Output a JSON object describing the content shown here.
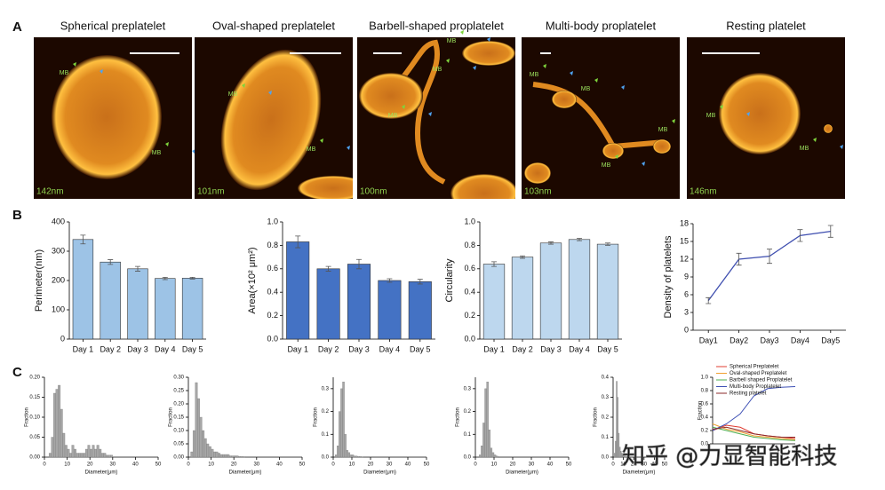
{
  "figure": {
    "panel_labels": [
      "A",
      "B",
      "C"
    ],
    "watermark": "知乎 @力显智能科技"
  },
  "panel_a": [
    {
      "title": "Spherical preplatelet",
      "scale": "142nm",
      "markers": [
        "MB",
        "MB"
      ]
    },
    {
      "title": "Oval-shaped preplatelet",
      "scale": "101nm",
      "markers": [
        "MB",
        "MB"
      ]
    },
    {
      "title": "Barbell-shaped proplatelet",
      "scale": "100nm",
      "markers": [
        "MB",
        "MB",
        "MB"
      ]
    },
    {
      "title": "Multi-body proplatelet",
      "scale": "103nm",
      "markers": [
        "MB",
        "MB",
        "MB",
        "MB"
      ]
    },
    {
      "title": "Resting platelet",
      "scale": "146nm",
      "markers": [
        "MB",
        "MB"
      ]
    }
  ],
  "chart_data": [
    {
      "type": "bar",
      "ylabel": "Perimeter(nm)",
      "categories": [
        "Day 1",
        "Day 2",
        "Day 3",
        "Day 4",
        "Day 5"
      ],
      "values": [
        340,
        263,
        240,
        207,
        208
      ],
      "errors": [
        15,
        8,
        8,
        4,
        3
      ],
      "color": "#9dc3e6",
      "ylim": [
        0,
        400
      ],
      "yticks": [
        0,
        100,
        200,
        300,
        400
      ]
    },
    {
      "type": "bar",
      "ylabel": "Area(×10² μm²)",
      "categories": [
        "Day 1",
        "Day 2",
        "Day 3",
        "Day 4",
        "Day 5"
      ],
      "values": [
        0.83,
        0.6,
        0.64,
        0.5,
        0.49
      ],
      "errors": [
        0.05,
        0.02,
        0.04,
        0.015,
        0.02
      ],
      "color": "#4472c4",
      "ylim": [
        0,
        1
      ],
      "yticks": [
        {
          "value": 0,
          "label": "0.0"
        },
        0.2,
        0.4,
        0.6,
        0.8,
        {
          "value": 1,
          "label": "1.0"
        }
      ]
    },
    {
      "type": "bar",
      "ylabel": "Circularity",
      "categories": [
        "Day 1",
        "Day 2",
        "Day 3",
        "Day 4",
        "Day 5"
      ],
      "values": [
        0.64,
        0.7,
        0.82,
        0.85,
        0.81
      ],
      "errors": [
        0.02,
        0.01,
        0.01,
        0.01,
        0.01
      ],
      "color": "#bdd7ee",
      "ylim": [
        0,
        1
      ],
      "yticks": [
        {
          "value": 0,
          "label": "0.0"
        },
        0.2,
        0.4,
        0.6,
        0.8,
        {
          "value": 1,
          "label": "1.0"
        }
      ]
    },
    {
      "type": "line",
      "ylabel": "Density of platelets",
      "categories": [
        "Day1",
        "Day2",
        "Day3",
        "Day4",
        "Day5"
      ],
      "values": [
        5,
        12,
        12.5,
        16,
        16.7
      ],
      "errors": [
        0.5,
        1,
        1.2,
        1,
        1
      ],
      "color": "#3f4fb0",
      "ylim": [
        0,
        18
      ],
      "yticks": [
        0,
        3,
        6,
        9,
        12,
        15,
        18
      ]
    },
    {
      "type": "histogram",
      "xlabel": "Diameter(μm)",
      "ylabel": "Fraction",
      "color": "#a6a6a6",
      "bins": [
        2,
        3,
        4,
        5,
        6,
        7,
        8,
        9,
        10,
        11,
        12,
        13,
        14,
        15,
        16,
        17,
        18,
        19,
        20,
        21,
        22,
        23,
        24,
        25,
        26,
        27,
        28,
        29,
        30
      ],
      "values": [
        0.01,
        0.05,
        0.16,
        0.17,
        0.18,
        0.12,
        0.06,
        0.03,
        0.02,
        0.01,
        0.03,
        0.02,
        0.01,
        0.01,
        0.01,
        0.01,
        0.02,
        0.03,
        0.02,
        0.03,
        0.02,
        0.03,
        0.02,
        0.01,
        0.01,
        0.005,
        0.005,
        0.005
      ],
      "xlim": [
        0,
        50
      ],
      "xticks": [
        0,
        10,
        20,
        30,
        40,
        50
      ],
      "ylim": [
        0,
        0.2
      ],
      "yticks": [
        {
          "value": 0,
          "label": "0.00"
        },
        0.05,
        {
          "value": 0.1,
          "label": "0.10"
        },
        0.15,
        {
          "value": 0.2,
          "label": "0.20"
        }
      ]
    },
    {
      "type": "histogram",
      "xlabel": "Diameter(μm)",
      "ylabel": "Fraction",
      "color": "#a6a6a6",
      "bins": [
        1,
        2,
        3,
        4,
        5,
        6,
        7,
        8,
        9,
        10,
        11,
        12,
        13,
        14,
        15,
        16,
        17,
        18,
        19,
        20,
        21,
        22,
        23,
        24,
        25
      ],
      "values": [
        0.02,
        0.1,
        0.28,
        0.22,
        0.15,
        0.1,
        0.07,
        0.05,
        0.04,
        0.03,
        0.02,
        0.02,
        0.015,
        0.01,
        0.01,
        0.01,
        0.01,
        0.005,
        0.005,
        0.005,
        0.005,
        0.003,
        0.003,
        0.002
      ],
      "xlim": [
        0,
        50
      ],
      "xticks": [
        0,
        10,
        20,
        30,
        40,
        50
      ],
      "ylim": [
        0,
        0.3
      ],
      "yticks": [
        {
          "value": 0,
          "label": "0.00"
        },
        0.05,
        {
          "value": 0.1,
          "label": "0.10"
        },
        0.15,
        {
          "value": 0.2,
          "label": "0.20"
        },
        0.25,
        {
          "value": 0.3,
          "label": "0.30"
        }
      ]
    },
    {
      "type": "histogram",
      "xlabel": "Diameter(μm)",
      "ylabel": "Fraction",
      "color": "#a6a6a6",
      "bins": [
        1,
        2,
        3,
        4,
        5,
        6,
        7,
        8,
        9,
        10,
        11,
        12,
        13,
        14,
        15,
        16
      ],
      "values": [
        0.01,
        0.05,
        0.2,
        0.3,
        0.33,
        0.1,
        0.03,
        0.02,
        0.01,
        0.01,
        0.005,
        0.005,
        0.003,
        0.003,
        0.002
      ],
      "xlim": [
        0,
        50
      ],
      "xticks": [
        0,
        10,
        20,
        30,
        40,
        50
      ],
      "ylim": [
        0,
        0.35
      ],
      "yticks": [
        {
          "value": 0,
          "label": "0.0"
        },
        0.1,
        0.2,
        0.3
      ]
    },
    {
      "type": "histogram",
      "xlabel": "Diameter(μm)",
      "ylabel": "Fraction",
      "color": "#a6a6a6",
      "bins": [
        2,
        3,
        4,
        5,
        6,
        7,
        8,
        9,
        10,
        11,
        12
      ],
      "values": [
        0.01,
        0.05,
        0.15,
        0.3,
        0.33,
        0.12,
        0.04,
        0.02,
        0.01,
        0.005
      ],
      "xlim": [
        0,
        50
      ],
      "xticks": [
        0,
        10,
        20,
        30,
        40,
        50
      ],
      "ylim": [
        0,
        0.35
      ],
      "yticks": [
        {
          "value": 0,
          "label": "0.0"
        },
        0.1,
        0.2,
        0.3
      ]
    },
    {
      "type": "histogram",
      "xlabel": "Diameter(μm)",
      "ylabel": "Fraction",
      "color": "#a6a6a6",
      "bins": [
        1,
        2,
        3,
        4,
        5,
        6,
        7,
        8,
        9,
        10,
        11,
        12
      ],
      "values": [
        0.02,
        0.08,
        0.38,
        0.3,
        0.12,
        0.05,
        0.03,
        0.02,
        0.01,
        0.005,
        0.005
      ],
      "xlim": [
        0,
        50
      ],
      "xticks": [
        0,
        10,
        20,
        30,
        40,
        50
      ],
      "ylim": [
        0,
        0.4
      ],
      "yticks": [
        {
          "value": 0,
          "label": "0.0"
        },
        0.1,
        0.2,
        0.3,
        0.4
      ]
    },
    {
      "type": "multiline",
      "ylabel": "Fraction",
      "x": [
        1,
        2,
        3,
        4,
        5,
        6,
        7
      ],
      "xlim": [
        1,
        7
      ],
      "ylim": [
        0,
        1
      ],
      "yticks": [
        {
          "value": 0,
          "label": "0.0"
        },
        0.2,
        0.4,
        0.6,
        0.8,
        {
          "value": 1,
          "label": "1.0"
        }
      ],
      "legend": "upper left",
      "series": [
        {
          "name": "Spherical Preplatelet",
          "color": "#e03c31",
          "values": [
            0.2,
            0.28,
            0.25,
            0.15,
            0.12,
            0.1,
            0.08
          ]
        },
        {
          "name": "Oval-shaped Preplatelet",
          "color": "#f0a030",
          "values": [
            0.3,
            0.22,
            0.18,
            0.12,
            0.1,
            0.08,
            0.06
          ]
        },
        {
          "name": "Barbell shaped Proplatelet",
          "color": "#4caf50",
          "values": [
            0.25,
            0.2,
            0.15,
            0.1,
            0.08,
            0.06,
            0.05
          ]
        },
        {
          "name": "Multi-body Proplatelet",
          "color": "#3f51b5",
          "values": [
            0.2,
            0.3,
            0.45,
            0.72,
            0.83,
            0.85,
            0.86
          ]
        },
        {
          "name": "Resting platelet",
          "color": "#8b2a2a",
          "values": [
            0.22,
            0.25,
            0.2,
            0.15,
            0.12,
            0.1,
            0.1
          ]
        }
      ]
    }
  ]
}
